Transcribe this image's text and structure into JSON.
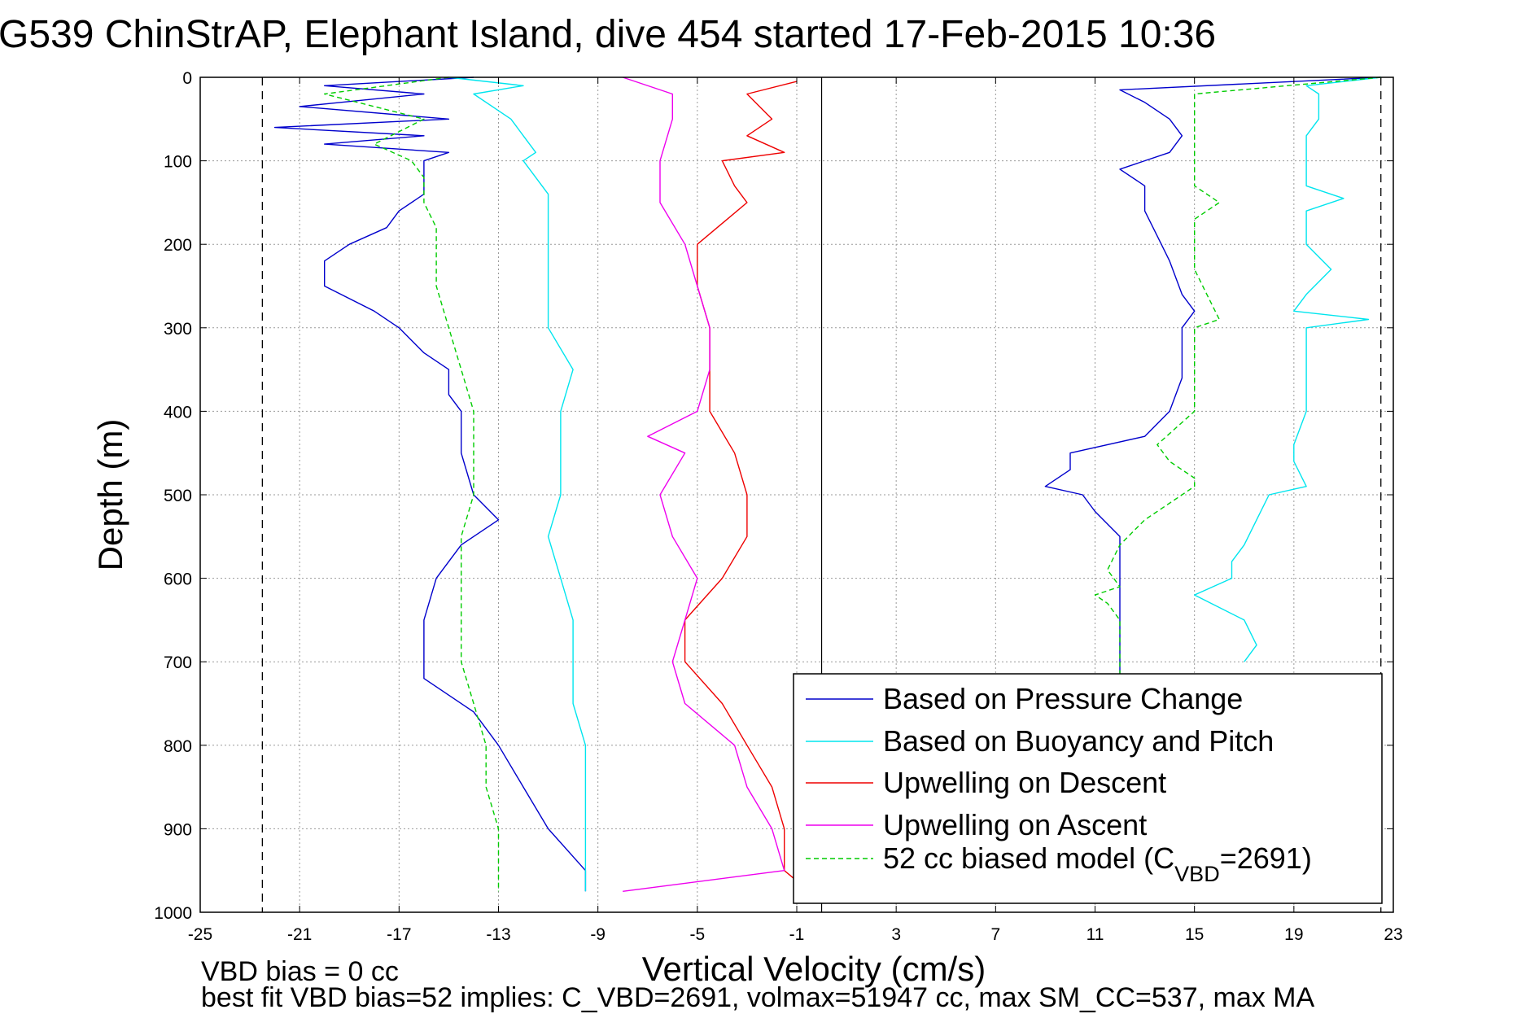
{
  "chart_data": {
    "type": "line",
    "title": "G539 ChinStrAP, Elephant Island, dive 454 started 17-Feb-2015 10:36",
    "xlabel": "Vertical Velocity (cm/s)",
    "ylabel": "Depth (m)",
    "xlim": [
      -25,
      23
    ],
    "ylim": [
      1000,
      0
    ],
    "y_reversed": true,
    "xticks": [
      -25,
      -21,
      -17,
      -13,
      -9,
      -5,
      -1,
      3,
      7,
      11,
      15,
      19,
      23
    ],
    "yticks": [
      0,
      100,
      200,
      300,
      400,
      500,
      600,
      700,
      800,
      900,
      1000
    ],
    "grid": true,
    "grid_style": "dotted",
    "legend_position": "bottom-right",
    "reference_lines": {
      "dashed_black": [
        -22.5,
        22.5
      ],
      "solid_black": [
        0
      ]
    },
    "series": [
      {
        "name": "Based on Pressure Change",
        "color": "#0000cc",
        "style": "solid",
        "segments": [
          {
            "depth": [
              0,
              10,
              20,
              35,
              50,
              60,
              70,
              80,
              90,
              100,
              120,
              140,
              160,
              180,
              200,
              220,
              250,
              280,
              300,
              330,
              350,
              380,
              400,
              450,
              500,
              530,
              560,
              600,
              650,
              700,
              720,
              760,
              800,
              850,
              900,
              950,
              975
            ],
            "velocity": [
              -14,
              -20,
              -16,
              -21,
              -15,
              -22,
              -16,
              -20,
              -15,
              -16,
              -16,
              -16,
              -17,
              -17.5,
              -19,
              -20,
              -20,
              -18,
              -17,
              -16,
              -15,
              -15,
              -14.5,
              -14.5,
              -14,
              -13,
              -14.5,
              -15.5,
              -16,
              -16,
              -16,
              -14,
              -13,
              -12,
              -11,
              -9.5,
              -9.5
            ]
          },
          {
            "depth": [
              0,
              15,
              30,
              50,
              70,
              90,
              110,
              130,
              160,
              190,
              220,
              260,
              280,
              300,
              330,
              360,
              400,
              430,
              450,
              470,
              490,
              500,
              520,
              550,
              600,
              650,
              700,
              720
            ],
            "velocity": [
              22.5,
              12,
              13,
              14,
              14.5,
              14,
              12,
              13,
              13,
              13.5,
              14,
              14.5,
              15,
              14.5,
              14.5,
              14.5,
              14,
              13,
              10,
              10,
              9,
              10.5,
              11,
              12,
              12,
              12,
              12,
              12
            ]
          }
        ]
      },
      {
        "name": "Based on Buoyancy and Pitch",
        "color": "#00e5ee",
        "style": "solid",
        "segments": [
          {
            "depth": [
              0,
              10,
              20,
              50,
              70,
              90,
              100,
              120,
              140,
              160,
              180,
              200,
              250,
              300,
              350,
              400,
              450,
              500,
              550,
              600,
              650,
              700,
              750,
              800,
              850,
              900,
              950,
              975
            ],
            "velocity": [
              -15,
              -12,
              -14,
              -12.5,
              -12,
              -11.5,
              -12,
              -11.5,
              -11,
              -11,
              -11,
              -11,
              -11,
              -11,
              -10,
              -10.5,
              -10.5,
              -10.5,
              -11,
              -10.5,
              -10,
              -10,
              -10,
              -9.5,
              -9.5,
              -9.5,
              -9.5,
              -9.5
            ]
          },
          {
            "depth": [
              0,
              10,
              20,
              50,
              70,
              90,
              100,
              130,
              145,
              160,
              200,
              230,
              260,
              280,
              290,
              300,
              350,
              400,
              440,
              460,
              490,
              500,
              530,
              560,
              580,
              600,
              620,
              650,
              680,
              700
            ],
            "velocity": [
              22.5,
              19.5,
              20,
              20,
              19.5,
              19.5,
              19.5,
              19.5,
              21,
              19.5,
              19.5,
              20.5,
              19.5,
              19,
              22,
              19.5,
              19.5,
              19.5,
              19,
              19,
              19.5,
              18,
              17.5,
              17,
              16.5,
              16.5,
              15,
              17,
              17.5,
              17
            ]
          }
        ]
      },
      {
        "name": "Upwelling on Descent",
        "color": "#ee0000",
        "style": "solid",
        "segments": [
          {
            "depth": [
              5,
              20,
              50,
              70,
              90,
              100,
              130,
              150,
              200,
              250,
              300,
              350,
              400,
              450,
              500,
              550,
              600,
              650,
              700,
              750,
              800,
              850,
              900,
              950,
              975
            ],
            "velocity": [
              -1,
              -3,
              -2,
              -3,
              -1.5,
              -4,
              -3.5,
              -3,
              -5,
              -5,
              -4.5,
              -4.5,
              -4.5,
              -3.5,
              -3,
              -3,
              -4,
              -5.5,
              -5.5,
              -4,
              -3,
              -2,
              -1.5,
              -1.5,
              -0.5
            ]
          }
        ]
      },
      {
        "name": "Upwelling on Ascent",
        "color": "#ee00ee",
        "style": "solid",
        "segments": [
          {
            "depth": [
              0,
              20,
              50,
              100,
              150,
              200,
              250,
              300,
              350,
              400,
              430,
              450,
              500,
              550,
              600,
              650,
              700,
              750,
              800,
              850,
              900,
              950,
              975
            ],
            "velocity": [
              -8,
              -6,
              -6,
              -6.5,
              -6.5,
              -5.5,
              -5,
              -4.5,
              -4.5,
              -5,
              -7,
              -5.5,
              -6.5,
              -6,
              -5,
              -5.5,
              -6,
              -5.5,
              -3.5,
              -3,
              -2,
              -1.5,
              -8
            ]
          }
        ]
      },
      {
        "name": "52 cc biased model (C_VBD=2691)",
        "color": "#00cc00",
        "style": "dashed",
        "segments": [
          {
            "depth": [
              0,
              20,
              50,
              80,
              100,
              120,
              150,
              180,
              200,
              250,
              300,
              350,
              400,
              450,
              500,
              550,
              600,
              650,
              700,
              750,
              800,
              850,
              900,
              950,
              975
            ],
            "velocity": [
              -15,
              -20,
              -16,
              -18,
              -16.5,
              -16,
              -16,
              -15.5,
              -15.5,
              -15.5,
              -15,
              -14.5,
              -14,
              -14,
              -14,
              -14.5,
              -14.5,
              -14.5,
              -14.5,
              -14,
              -13.5,
              -13.5,
              -13,
              -13,
              -13
            ]
          },
          {
            "depth": [
              0,
              20,
              50,
              80,
              100,
              130,
              150,
              170,
              200,
              230,
              260,
              290,
              300,
              350,
              400,
              440,
              460,
              480,
              490,
              500,
              530,
              560,
              590,
              610,
              620,
              630,
              650,
              700,
              720
            ],
            "velocity": [
              22.5,
              15,
              15,
              15,
              15,
              15,
              16,
              15,
              15,
              15,
              15.5,
              16,
              15,
              15,
              15,
              13.5,
              14,
              15,
              15,
              14.5,
              13,
              12,
              11.5,
              12,
              11,
              11.5,
              12,
              12,
              12
            ]
          }
        ]
      }
    ],
    "legend": [
      "Based on Pressure Change",
      "Based on Buoyancy and Pitch",
      "Upwelling on Descent",
      "Upwelling on Ascent",
      "52 cc biased model (C_VBD=2691)"
    ]
  },
  "footer": {
    "line1": "VBD bias = 0 cc",
    "line2": "best fit VBD bias=52 implies: C_VBD=2691, volmax=51947 cc, max SM_CC=537, max MA"
  }
}
